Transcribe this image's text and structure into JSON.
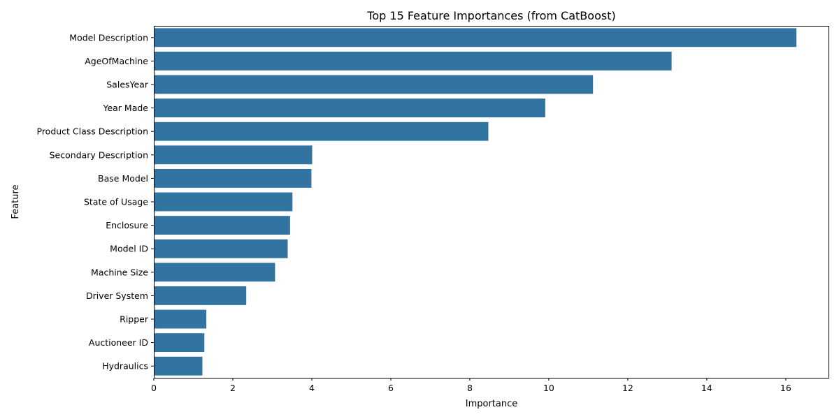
{
  "chart_data": {
    "type": "bar",
    "orientation": "horizontal",
    "title": "Top 15 Feature Importances (from CatBoost)",
    "xlabel": "Importance",
    "ylabel": "Feature",
    "xlim": [
      0,
      17.1
    ],
    "xticks": [
      0,
      2,
      4,
      6,
      8,
      10,
      12,
      14,
      16
    ],
    "grid": false,
    "bar_color": "#3274a1",
    "categories": [
      "Model Description",
      "AgeOfMachine",
      "SalesYear",
      "Year Made",
      "Product Class Description",
      "Secondary Description",
      "Base Model",
      "State of Usage",
      "Enclosure",
      "Model ID",
      "Machine Size",
      "Driver System",
      "Ripper",
      "Auctioneer ID",
      "Hydraulics"
    ],
    "values": [
      16.27,
      13.11,
      11.12,
      9.91,
      8.47,
      4.01,
      3.99,
      3.51,
      3.45,
      3.39,
      3.07,
      2.34,
      1.33,
      1.28,
      1.23
    ]
  }
}
